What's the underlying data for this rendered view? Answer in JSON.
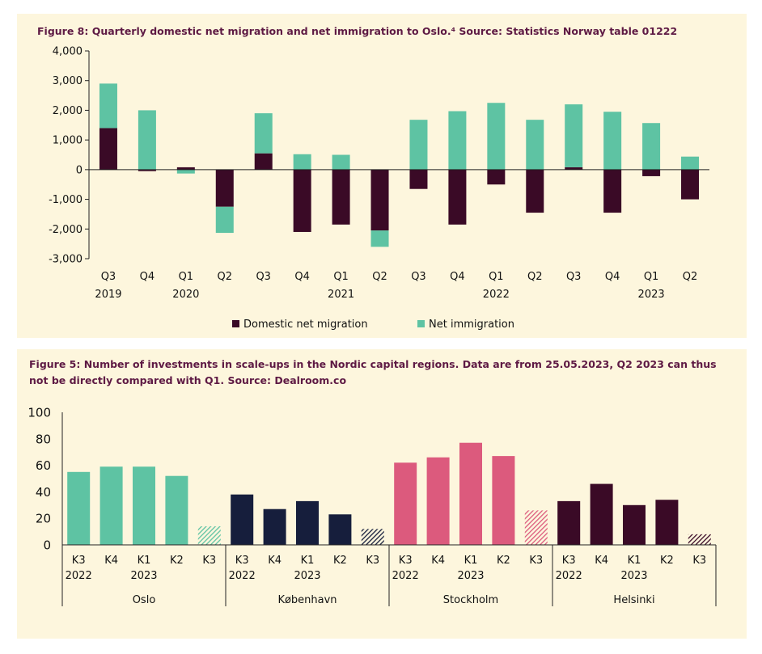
{
  "chart_data": [
    {
      "type": "bar",
      "stacked": true,
      "title": "Figure 8: Quarterly domestic net migration and net immigration to Oslo.⁴ Source: Statistics Norway table 01222",
      "quarters": [
        "Q3",
        "Q4",
        "Q1",
        "Q2",
        "Q3",
        "Q4",
        "Q1",
        "Q2",
        "Q3",
        "Q4",
        "Q1",
        "Q2",
        "Q3",
        "Q4",
        "Q1",
        "Q2"
      ],
      "years": [
        {
          "label": "2019",
          "index": 0
        },
        {
          "label": "2020",
          "index": 2
        },
        {
          "label": "2021",
          "index": 6
        },
        {
          "label": "2022",
          "index": 10
        },
        {
          "label": "2023",
          "index": 14
        }
      ],
      "series": [
        {
          "name": "Domestic net migration",
          "color": "#3a0a26",
          "values": [
            1400,
            -50,
            80,
            -1250,
            550,
            -2100,
            -1850,
            -2050,
            -650,
            -1850,
            -500,
            -1450,
            80,
            -1450,
            -220,
            -1000
          ]
        },
        {
          "name": "Net immigration",
          "color": "#5ec3a3",
          "values": [
            1500,
            2000,
            -130,
            -880,
            1350,
            520,
            500,
            -550,
            1680,
            1970,
            2250,
            1680,
            2120,
            1950,
            1570,
            440
          ]
        }
      ],
      "ylim": [
        -3000,
        4000
      ],
      "yticks": [
        -3000,
        -2000,
        -1000,
        0,
        1000,
        2000,
        3000,
        4000
      ],
      "ytick_labels": [
        "-3,000",
        "-2,000",
        "-1,000",
        "0",
        "1,000",
        "2,000",
        "3,000",
        "4,000"
      ],
      "legend": [
        "Domestic net migration",
        "Net immigration"
      ]
    },
    {
      "type": "bar",
      "title_lines": [
        "Figure 5: Number of investments in scale-ups in the Nordic capital regions. Data are from 25.05.2023, Q2 2023 can thus",
        "not be directly compared with Q1. Source: Dealroom.co"
      ],
      "quarters": [
        "K3",
        "K4",
        "K1",
        "K2",
        "K3"
      ],
      "year_labels": [
        {
          "label": "2022",
          "index": 0
        },
        {
          "label": "2023",
          "index": 2
        }
      ],
      "groups": [
        {
          "name": "Oslo",
          "color": "#5ec3a3",
          "values": [
            55,
            59,
            59,
            52,
            14
          ]
        },
        {
          "name": "København",
          "color": "#161e3c",
          "values": [
            38,
            27,
            33,
            23,
            12
          ]
        },
        {
          "name": "Stockholm",
          "color": "#dc5a7d",
          "values": [
            62,
            66,
            77,
            67,
            26
          ]
        },
        {
          "name": "Helsinki",
          "color": "#3a0a26",
          "values": [
            33,
            46,
            30,
            34,
            8
          ]
        }
      ],
      "ylim": [
        0,
        100
      ],
      "yticks": [
        "0",
        "20",
        "40",
        "60",
        "80",
        "100"
      ]
    }
  ]
}
